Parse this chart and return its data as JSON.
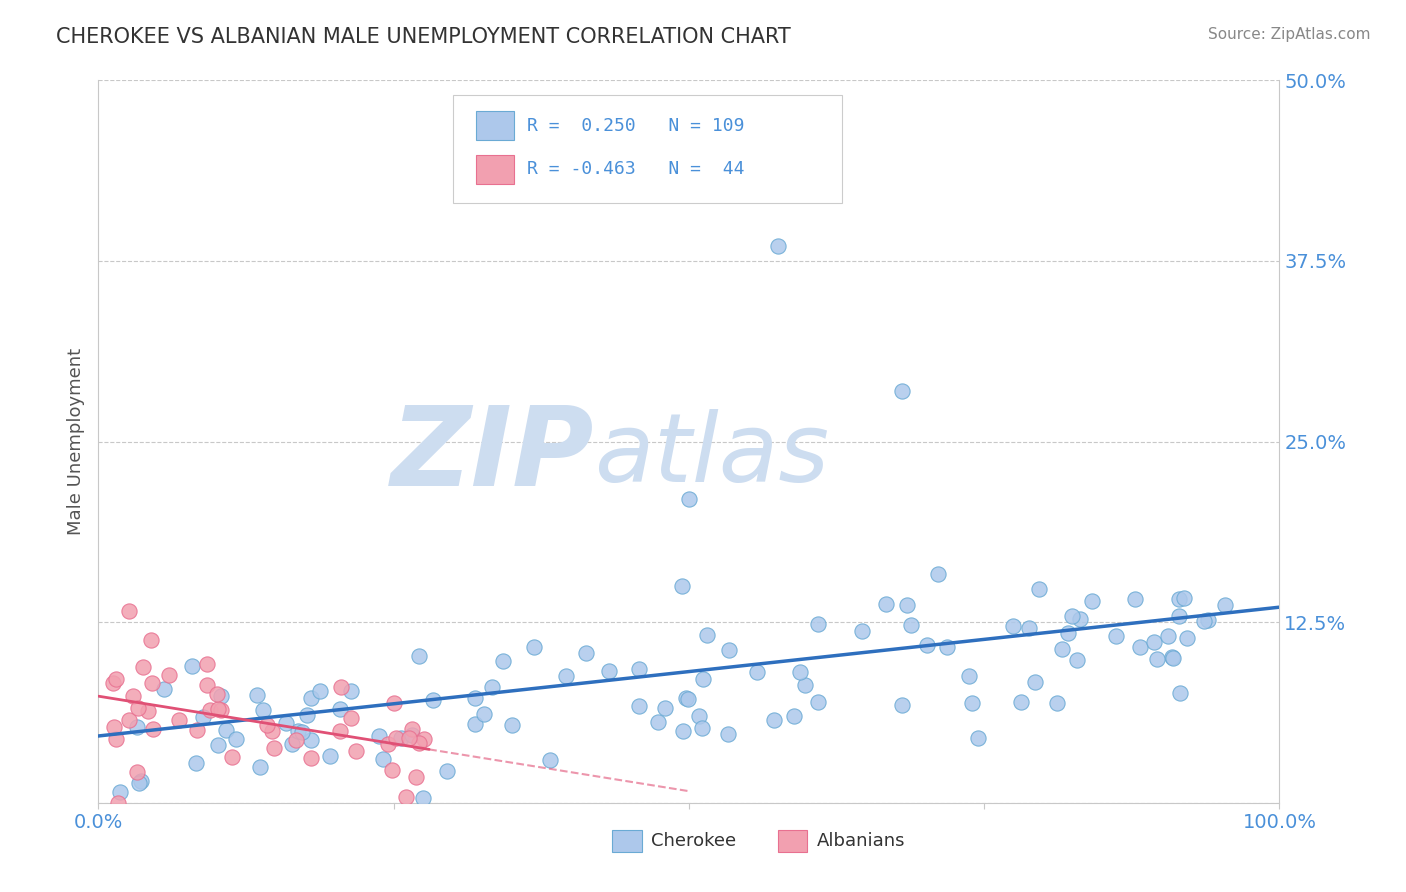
{
  "title": "CHEROKEE VS ALBANIAN MALE UNEMPLOYMENT CORRELATION CHART",
  "source_text": "Source: ZipAtlas.com",
  "ylabel": "Male Unemployment",
  "xlim": [
    0.0,
    1.0
  ],
  "ylim": [
    0.0,
    0.5
  ],
  "yticks": [
    0.0,
    0.125,
    0.25,
    0.375,
    0.5
  ],
  "ytick_labels": [
    "",
    "12.5%",
    "25.0%",
    "37.5%",
    "50.0%"
  ],
  "cherokee_R": 0.25,
  "cherokee_N": 109,
  "albanian_R": -0.463,
  "albanian_N": 44,
  "cherokee_color": "#adc8eb",
  "albanian_color": "#f2a0b0",
  "cherokee_edge_color": "#6aaad4",
  "albanian_edge_color": "#e87090",
  "cherokee_line_color": "#2e6fbe",
  "albanian_line_color": "#e05075",
  "title_color": "#333333",
  "source_color": "#888888",
  "axis_label_color": "#555555",
  "tick_color": "#4a90d9",
  "grid_color": "#c8c8c8",
  "background_color": "#ffffff",
  "watermark_zip_color": "#cdddf0",
  "watermark_atlas_color": "#cdddf0",
  "legend_border_color": "#cccccc",
  "bottom_legend_cherokee": "Cherokee",
  "bottom_legend_albanian": "Albanians"
}
